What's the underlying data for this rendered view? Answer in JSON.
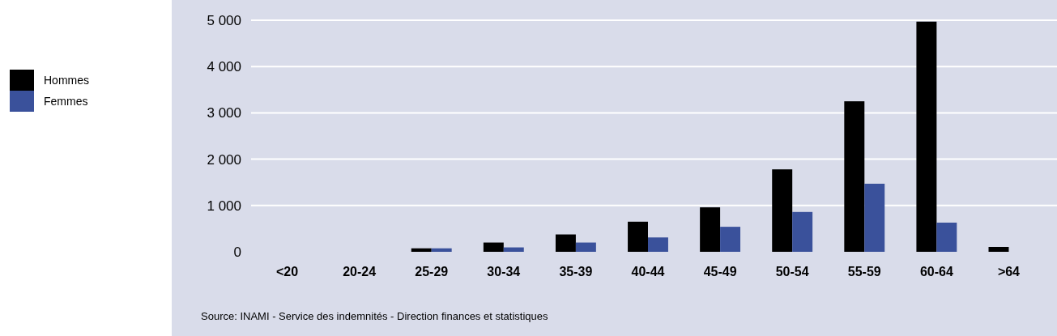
{
  "chart_data": {
    "type": "bar",
    "categories": [
      "<20",
      "20-24",
      "25-29",
      "30-34",
      "35-39",
      "40-44",
      "45-49",
      "50-54",
      "55-59",
      "60-64",
      ">64"
    ],
    "series": [
      {
        "name": "Hommes",
        "color": "#000000",
        "values": [
          0,
          0,
          75,
          200,
          375,
          650,
          960,
          1780,
          3250,
          4970,
          105
        ]
      },
      {
        "name": "Femmes",
        "color": "#3a519b",
        "values": [
          0,
          0,
          75,
          95,
          200,
          310,
          540,
          860,
          1470,
          630,
          0
        ]
      }
    ],
    "ylim": [
      0,
      5000
    ],
    "yticks": [
      {
        "value": 0,
        "label": "0"
      },
      {
        "value": 1000,
        "label": "1 000"
      },
      {
        "value": 2000,
        "label": "2 000"
      },
      {
        "value": 3000,
        "label": "3 000"
      },
      {
        "value": 4000,
        "label": "4 000"
      },
      {
        "value": 5000,
        "label": "5 000"
      }
    ],
    "grid": "y",
    "legend": "left",
    "annotations": [
      "Source: INAMI - Service des indemnités - Direction finances et statistiques"
    ]
  }
}
